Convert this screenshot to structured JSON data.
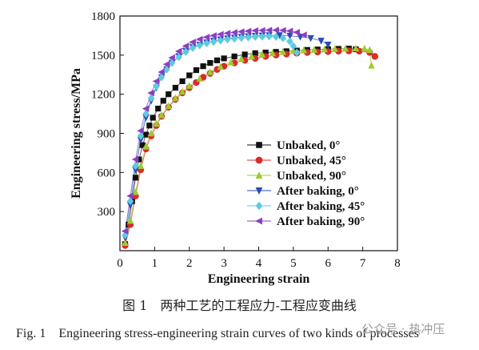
{
  "chart_data": {
    "type": "scatter",
    "title": "",
    "xlabel": "Engineering strain",
    "ylabel": "Engineering stress/MPa",
    "xlim": [
      0,
      8
    ],
    "ylim": [
      0,
      1800
    ],
    "xticks": [
      "0",
      "1",
      "2",
      "3",
      "4",
      "5",
      "6",
      "7",
      "8"
    ],
    "yticks": [
      "300",
      "600",
      "900",
      "1200",
      "1500",
      "1800"
    ],
    "legend_position": "lower-right",
    "series": [
      {
        "name": "Unbaked, 0°",
        "marker": "square",
        "color": "#111111",
        "points": [
          [
            0.15,
            50
          ],
          [
            0.25,
            200
          ],
          [
            0.35,
            380
          ],
          [
            0.45,
            560
          ],
          [
            0.55,
            700
          ],
          [
            0.65,
            810
          ],
          [
            0.75,
            890
          ],
          [
            0.85,
            960
          ],
          [
            0.95,
            1020
          ],
          [
            1.1,
            1090
          ],
          [
            1.25,
            1150
          ],
          [
            1.4,
            1200
          ],
          [
            1.6,
            1250
          ],
          [
            1.8,
            1300
          ],
          [
            2.0,
            1345
          ],
          [
            2.2,
            1385
          ],
          [
            2.4,
            1415
          ],
          [
            2.6,
            1440
          ],
          [
            2.8,
            1460
          ],
          [
            3.0,
            1475
          ],
          [
            3.3,
            1490
          ],
          [
            3.6,
            1505
          ],
          [
            3.9,
            1515
          ],
          [
            4.2,
            1520
          ],
          [
            4.5,
            1525
          ],
          [
            4.8,
            1530
          ],
          [
            5.1,
            1535
          ],
          [
            5.4,
            1540
          ],
          [
            5.7,
            1543
          ],
          [
            6.0,
            1546
          ],
          [
            6.3,
            1548
          ],
          [
            6.6,
            1550
          ],
          [
            6.8,
            1545
          ]
        ]
      },
      {
        "name": "Unbaked, 45°",
        "marker": "circle",
        "color": "#d92b2b",
        "points": [
          [
            0.15,
            40
          ],
          [
            0.3,
            200
          ],
          [
            0.45,
            420
          ],
          [
            0.6,
            620
          ],
          [
            0.75,
            780
          ],
          [
            0.9,
            880
          ],
          [
            1.05,
            960
          ],
          [
            1.2,
            1030
          ],
          [
            1.4,
            1100
          ],
          [
            1.6,
            1160
          ],
          [
            1.8,
            1210
          ],
          [
            2.0,
            1250
          ],
          [
            2.2,
            1290
          ],
          [
            2.4,
            1330
          ],
          [
            2.6,
            1360
          ],
          [
            2.8,
            1390
          ],
          [
            3.0,
            1415
          ],
          [
            3.3,
            1440
          ],
          [
            3.6,
            1460
          ],
          [
            3.9,
            1475
          ],
          [
            4.2,
            1490
          ],
          [
            4.5,
            1500
          ],
          [
            4.8,
            1508
          ],
          [
            5.1,
            1515
          ],
          [
            5.4,
            1520
          ],
          [
            5.7,
            1524
          ],
          [
            6.0,
            1527
          ],
          [
            6.3,
            1530
          ],
          [
            6.6,
            1532
          ],
          [
            6.9,
            1530
          ],
          [
            7.2,
            1520
          ],
          [
            7.35,
            1490
          ]
        ]
      },
      {
        "name": "Unbaked, 90°",
        "marker": "triangle-up",
        "color": "#9ccc2e",
        "points": [
          [
            0.15,
            60
          ],
          [
            0.3,
            230
          ],
          [
            0.45,
            450
          ],
          [
            0.6,
            650
          ],
          [
            0.75,
            800
          ],
          [
            0.9,
            900
          ],
          [
            1.05,
            975
          ],
          [
            1.2,
            1040
          ],
          [
            1.4,
            1110
          ],
          [
            1.6,
            1170
          ],
          [
            1.8,
            1220
          ],
          [
            2.0,
            1265
          ],
          [
            2.3,
            1320
          ],
          [
            2.6,
            1370
          ],
          [
            2.9,
            1410
          ],
          [
            3.2,
            1445
          ],
          [
            3.5,
            1470
          ],
          [
            3.8,
            1490
          ],
          [
            4.1,
            1505
          ],
          [
            4.4,
            1515
          ],
          [
            4.7,
            1525
          ],
          [
            5.0,
            1532
          ],
          [
            5.3,
            1538
          ],
          [
            5.6,
            1542
          ],
          [
            5.9,
            1545
          ],
          [
            6.2,
            1548
          ],
          [
            6.5,
            1550
          ],
          [
            6.8,
            1552
          ],
          [
            7.05,
            1550
          ],
          [
            7.2,
            1540
          ],
          [
            7.25,
            1420
          ]
        ]
      },
      {
        "name": "After baking, 0°",
        "marker": "triangle-down",
        "color": "#2b4bb3",
        "points": [
          [
            0.15,
            100
          ],
          [
            0.3,
            350
          ],
          [
            0.45,
            620
          ],
          [
            0.6,
            850
          ],
          [
            0.75,
            1020
          ],
          [
            0.9,
            1150
          ],
          [
            1.05,
            1250
          ],
          [
            1.2,
            1330
          ],
          [
            1.35,
            1390
          ],
          [
            1.5,
            1440
          ],
          [
            1.7,
            1490
          ],
          [
            1.9,
            1530
          ],
          [
            2.1,
            1560
          ],
          [
            2.3,
            1580
          ],
          [
            2.5,
            1597
          ],
          [
            2.7,
            1610
          ],
          [
            2.9,
            1620
          ],
          [
            3.1,
            1628
          ],
          [
            3.3,
            1634
          ],
          [
            3.5,
            1640
          ],
          [
            3.7,
            1644
          ],
          [
            3.9,
            1648
          ],
          [
            4.1,
            1650
          ],
          [
            4.3,
            1652
          ],
          [
            4.6,
            1652
          ],
          [
            4.9,
            1648
          ],
          [
            5.2,
            1640
          ],
          [
            5.5,
            1630
          ],
          [
            5.8,
            1610
          ],
          [
            6.0,
            1580
          ]
        ]
      },
      {
        "name": "After baking, 45°",
        "marker": "diamond",
        "color": "#5ccbe0",
        "points": [
          [
            0.15,
            120
          ],
          [
            0.3,
            380
          ],
          [
            0.45,
            650
          ],
          [
            0.6,
            880
          ],
          [
            0.75,
            1050
          ],
          [
            0.9,
            1170
          ],
          [
            1.05,
            1260
          ],
          [
            1.2,
            1330
          ],
          [
            1.35,
            1390
          ],
          [
            1.5,
            1440
          ],
          [
            1.7,
            1485
          ],
          [
            1.9,
            1525
          ],
          [
            2.1,
            1555
          ],
          [
            2.3,
            1575
          ],
          [
            2.5,
            1590
          ],
          [
            2.7,
            1602
          ],
          [
            2.9,
            1612
          ],
          [
            3.1,
            1620
          ],
          [
            3.3,
            1626
          ],
          [
            3.5,
            1632
          ],
          [
            3.7,
            1636
          ],
          [
            3.9,
            1640
          ],
          [
            4.1,
            1642
          ],
          [
            4.3,
            1643
          ],
          [
            4.5,
            1640
          ],
          [
            4.7,
            1630
          ],
          [
            4.9,
            1605
          ],
          [
            5.0,
            1570
          ],
          [
            5.1,
            1520
          ]
        ]
      },
      {
        "name": "After baking, 90°",
        "marker": "triangle-left",
        "color": "#8b3fc2",
        "points": [
          [
            0.15,
            150
          ],
          [
            0.3,
            420
          ],
          [
            0.45,
            700
          ],
          [
            0.6,
            920
          ],
          [
            0.75,
            1090
          ],
          [
            0.9,
            1210
          ],
          [
            1.05,
            1300
          ],
          [
            1.2,
            1370
          ],
          [
            1.35,
            1430
          ],
          [
            1.5,
            1480
          ],
          [
            1.7,
            1530
          ],
          [
            1.9,
            1570
          ],
          [
            2.1,
            1600
          ],
          [
            2.3,
            1622
          ],
          [
            2.5,
            1638
          ],
          [
            2.7,
            1650
          ],
          [
            2.9,
            1660
          ],
          [
            3.1,
            1668
          ],
          [
            3.3,
            1674
          ],
          [
            3.5,
            1680
          ],
          [
            3.7,
            1684
          ],
          [
            3.9,
            1688
          ],
          [
            4.1,
            1690
          ],
          [
            4.3,
            1692
          ],
          [
            4.5,
            1692
          ],
          [
            4.7,
            1690
          ],
          [
            4.9,
            1685
          ],
          [
            5.1,
            1675
          ],
          [
            5.3,
            1655
          ]
        ]
      }
    ]
  },
  "caption": {
    "cn": "图 1　两种工艺的工程应力-工程应变曲线",
    "en": "Fig. 1　Engineering stress-engineering strain curves of two kinds of processes"
  },
  "watermark": "公众号 · 热冲压"
}
